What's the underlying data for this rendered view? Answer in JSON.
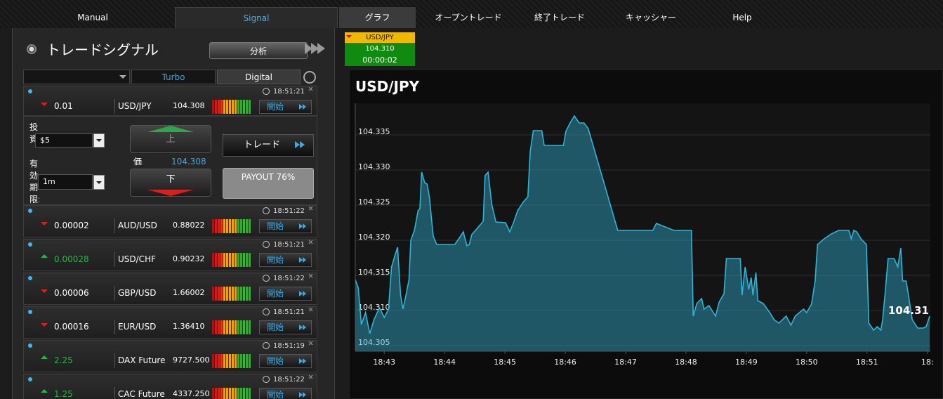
{
  "nav": {
    "left_tabs": [
      "Manual",
      "Signal"
    ],
    "right_tabs": [
      "グラフ",
      "オープントレード",
      "終了トレード",
      "キャッシャー",
      "Help"
    ]
  },
  "signal_panel": {
    "title": "トレードシグナル",
    "analyze_button": "分析",
    "filters": [
      "Turbo",
      "Digital"
    ],
    "start_label": "開始",
    "rows": [
      {
        "time": "18:51:21",
        "direction": "down",
        "change": "0.01",
        "pair": "USD/JPY",
        "price": "104.308"
      },
      {
        "time": "18:51:22",
        "direction": "down",
        "change": "0.00002",
        "pair": "AUD/USD",
        "price": "0.88022"
      },
      {
        "time": "18:51:21",
        "direction": "up",
        "change": "0.00028",
        "pair": "USD/CHF",
        "price": "0.90232"
      },
      {
        "time": "18:51:22",
        "direction": "down",
        "change": "0.00006",
        "pair": "GBP/USD",
        "price": "1.66002"
      },
      {
        "time": "18:51:21",
        "direction": "down",
        "change": "0.00016",
        "pair": "EUR/USD",
        "price": "1.36410"
      },
      {
        "time": "18:51:19",
        "direction": "up",
        "change": "2.25",
        "pair": "DAX Future",
        "price": "9727.500"
      },
      {
        "time": "18:51:22",
        "direction": "up",
        "change": "1.25",
        "pair": "CAC Future",
        "price": "4337.250"
      }
    ],
    "trade_form": {
      "investment_label": "投資:",
      "investment": "$5",
      "expiry_label": "有効期限:",
      "expiry": "1m",
      "up": "上",
      "down": "下",
      "price_label": "価",
      "price": "104.308",
      "trade": "トレード",
      "payout": "PAYOUT 76%"
    }
  },
  "ticker": {
    "pair": "USD/JPY",
    "price": "104.310",
    "countdown": "00:00:02"
  },
  "chart_data": {
    "type": "area",
    "title": "USD/JPY",
    "color": "#2fb5d8",
    "grid": true,
    "annotation": "104.31",
    "x": [
      42.52,
      42.57,
      42.62,
      42.69,
      42.76,
      42.83,
      42.92,
      43.0,
      43.07,
      43.12,
      43.19,
      43.22,
      43.27,
      43.31,
      43.36,
      43.41,
      43.44,
      43.5,
      43.56,
      43.59,
      43.62,
      43.67,
      43.71,
      43.75,
      43.81,
      43.87,
      44.17,
      44.25,
      44.31,
      44.37,
      44.41,
      44.45,
      44.54,
      44.64,
      44.67,
      44.72,
      44.78,
      44.85,
      45.01,
      45.08,
      45.15,
      45.21,
      45.3,
      45.38,
      45.42,
      45.47,
      45.61,
      45.65,
      45.97,
      46.01,
      46.08,
      46.15,
      46.23,
      46.31,
      46.38,
      46.87,
      47.45,
      47.51,
      47.8,
      48.09,
      48.12,
      48.18,
      48.26,
      48.3,
      48.38,
      48.49,
      48.55,
      48.63,
      48.67,
      48.9,
      48.93,
      48.98,
      49.04,
      49.08,
      49.11,
      49.16,
      49.19,
      49.28,
      49.39,
      49.46,
      49.54,
      49.66,
      49.74,
      49.81,
      49.95,
      50.0,
      50.08,
      50.14,
      50.18,
      50.29,
      50.41,
      50.53,
      50.7,
      50.74,
      50.78,
      50.83,
      50.9,
      50.99,
      51.03,
      51.11,
      51.17,
      51.23,
      51.26,
      51.3,
      51.35,
      51.45,
      51.51,
      51.56,
      51.59,
      51.65,
      51.75,
      51.84,
      51.93,
      51.98,
      52.04
    ],
    "values": [
      104.3144,
      104.3132,
      104.308,
      104.3097,
      104.3067,
      104.3087,
      104.3104,
      104.309,
      104.3102,
      104.3162,
      104.3182,
      104.319,
      104.3122,
      104.3102,
      104.3122,
      104.3144,
      104.32,
      104.3214,
      104.3242,
      104.3245,
      104.3297,
      104.3282,
      104.328,
      104.326,
      104.3206,
      104.3194,
      104.3194,
      104.3204,
      104.3212,
      104.3192,
      104.3194,
      104.3208,
      104.3217,
      104.3227,
      104.3292,
      104.3297,
      104.3252,
      104.3226,
      104.3225,
      104.3212,
      104.3227,
      104.3242,
      104.3254,
      104.3262,
      104.3327,
      104.3356,
      104.3356,
      104.3335,
      104.3335,
      104.3355,
      104.3367,
      104.3377,
      104.3367,
      104.3367,
      104.3359,
      104.3214,
      104.3214,
      104.3224,
      104.3214,
      104.3214,
      104.3092,
      104.311,
      104.3117,
      104.3102,
      104.3107,
      104.3092,
      104.3112,
      104.3124,
      104.3174,
      104.3174,
      104.3122,
      104.3162,
      104.313,
      104.3147,
      104.3122,
      104.3154,
      104.3114,
      104.311,
      104.3097,
      104.3087,
      104.3082,
      104.3092,
      104.3079,
      104.3092,
      104.3102,
      104.3097,
      104.3109,
      104.3142,
      104.3194,
      104.3202,
      104.3209,
      104.3214,
      104.3214,
      104.3202,
      104.3214,
      104.3212,
      104.3202,
      104.3194,
      104.3082,
      104.3072,
      104.3077,
      104.3072,
      104.3087,
      104.3124,
      104.3174,
      104.3174,
      104.3162,
      104.3189,
      104.3142,
      104.3142,
      104.3087,
      104.3075,
      104.3075,
      104.3077,
      104.3092
    ],
    "xlim": [
      42.52,
      52.05
    ],
    "xticks": [
      {
        "value": 43,
        "label": "18:43"
      },
      {
        "value": 44,
        "label": "18:44"
      },
      {
        "value": 45,
        "label": "18:45"
      },
      {
        "value": 46,
        "label": "18:46"
      },
      {
        "value": 47,
        "label": "18:47"
      },
      {
        "value": 48,
        "label": "18:48"
      },
      {
        "value": 49,
        "label": "18:49"
      },
      {
        "value": 50,
        "label": "18:50"
      },
      {
        "value": 51,
        "label": "18:51"
      },
      {
        "value": 52,
        "label": "18:"
      }
    ],
    "ylim": [
      104.3042,
      104.3395
    ],
    "yticks": [
      104.305,
      {
        "value": 104.31,
        "label": "104.310"
      },
      104.315,
      {
        "value": 104.32,
        "label": "104.320"
      },
      104.325,
      {
        "value": 104.33,
        "label": "104.330"
      },
      104.335
    ]
  }
}
